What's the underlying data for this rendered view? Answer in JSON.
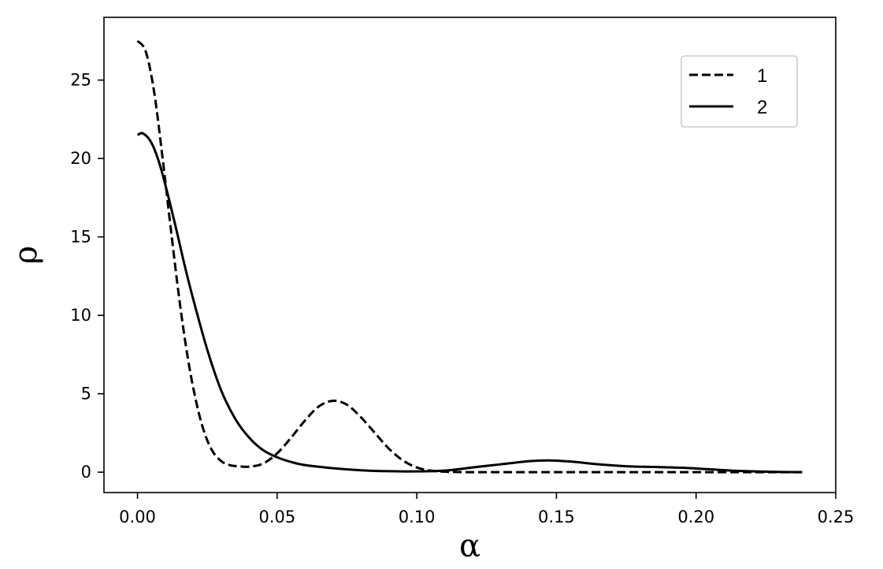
{
  "chart_data": {
    "type": "line",
    "title": "",
    "xlabel": "α",
    "ylabel": "ρ",
    "xlim": [
      -0.012,
      0.25
    ],
    "ylim": [
      -1.3,
      29
    ],
    "xticks": [
      0.0,
      0.05,
      0.1,
      0.15,
      0.2,
      0.25
    ],
    "xtick_labels": [
      "0.00",
      "0.05",
      "0.10",
      "0.15",
      "0.20",
      "0.25"
    ],
    "yticks": [
      0,
      5,
      10,
      15,
      20,
      25
    ],
    "ytick_labels": [
      "0",
      "5",
      "10",
      "15",
      "20",
      "25"
    ],
    "grid": false,
    "legend_position": "top-right",
    "series": [
      {
        "name": "1",
        "style": "dashed",
        "color": "#000000",
        "x": [
          0.0,
          0.003,
          0.006,
          0.009,
          0.012,
          0.015,
          0.018,
          0.021,
          0.024,
          0.027,
          0.03,
          0.033,
          0.036,
          0.04,
          0.045,
          0.05,
          0.055,
          0.06,
          0.065,
          0.07,
          0.075,
          0.08,
          0.085,
          0.09,
          0.095,
          0.1,
          0.105,
          0.11,
          0.12,
          0.14,
          0.16,
          0.18,
          0.2,
          0.22,
          0.238
        ],
        "y": [
          27.5,
          26.8,
          24.2,
          20.0,
          15.4,
          11.0,
          7.3,
          4.5,
          2.5,
          1.3,
          0.7,
          0.45,
          0.38,
          0.35,
          0.55,
          1.2,
          2.2,
          3.3,
          4.2,
          4.55,
          4.3,
          3.5,
          2.5,
          1.5,
          0.75,
          0.3,
          0.1,
          0.03,
          0.0,
          0.0,
          0.0,
          0.0,
          0.0,
          0.0,
          0.0
        ]
      },
      {
        "name": "2",
        "style": "solid",
        "color": "#000000",
        "x": [
          0.0,
          0.002,
          0.005,
          0.008,
          0.011,
          0.014,
          0.017,
          0.02,
          0.025,
          0.03,
          0.035,
          0.04,
          0.045,
          0.05,
          0.055,
          0.06,
          0.07,
          0.08,
          0.09,
          0.1,
          0.11,
          0.12,
          0.13,
          0.14,
          0.147,
          0.155,
          0.165,
          0.175,
          0.185,
          0.195,
          0.205,
          0.215,
          0.225,
          0.238
        ],
        "y": [
          21.5,
          21.6,
          21.0,
          19.6,
          17.6,
          15.4,
          13.1,
          11.0,
          7.8,
          5.2,
          3.4,
          2.2,
          1.4,
          0.95,
          0.65,
          0.45,
          0.25,
          0.12,
          0.06,
          0.05,
          0.1,
          0.3,
          0.5,
          0.7,
          0.75,
          0.68,
          0.5,
          0.38,
          0.33,
          0.28,
          0.18,
          0.08,
          0.03,
          0.0
        ]
      }
    ]
  }
}
